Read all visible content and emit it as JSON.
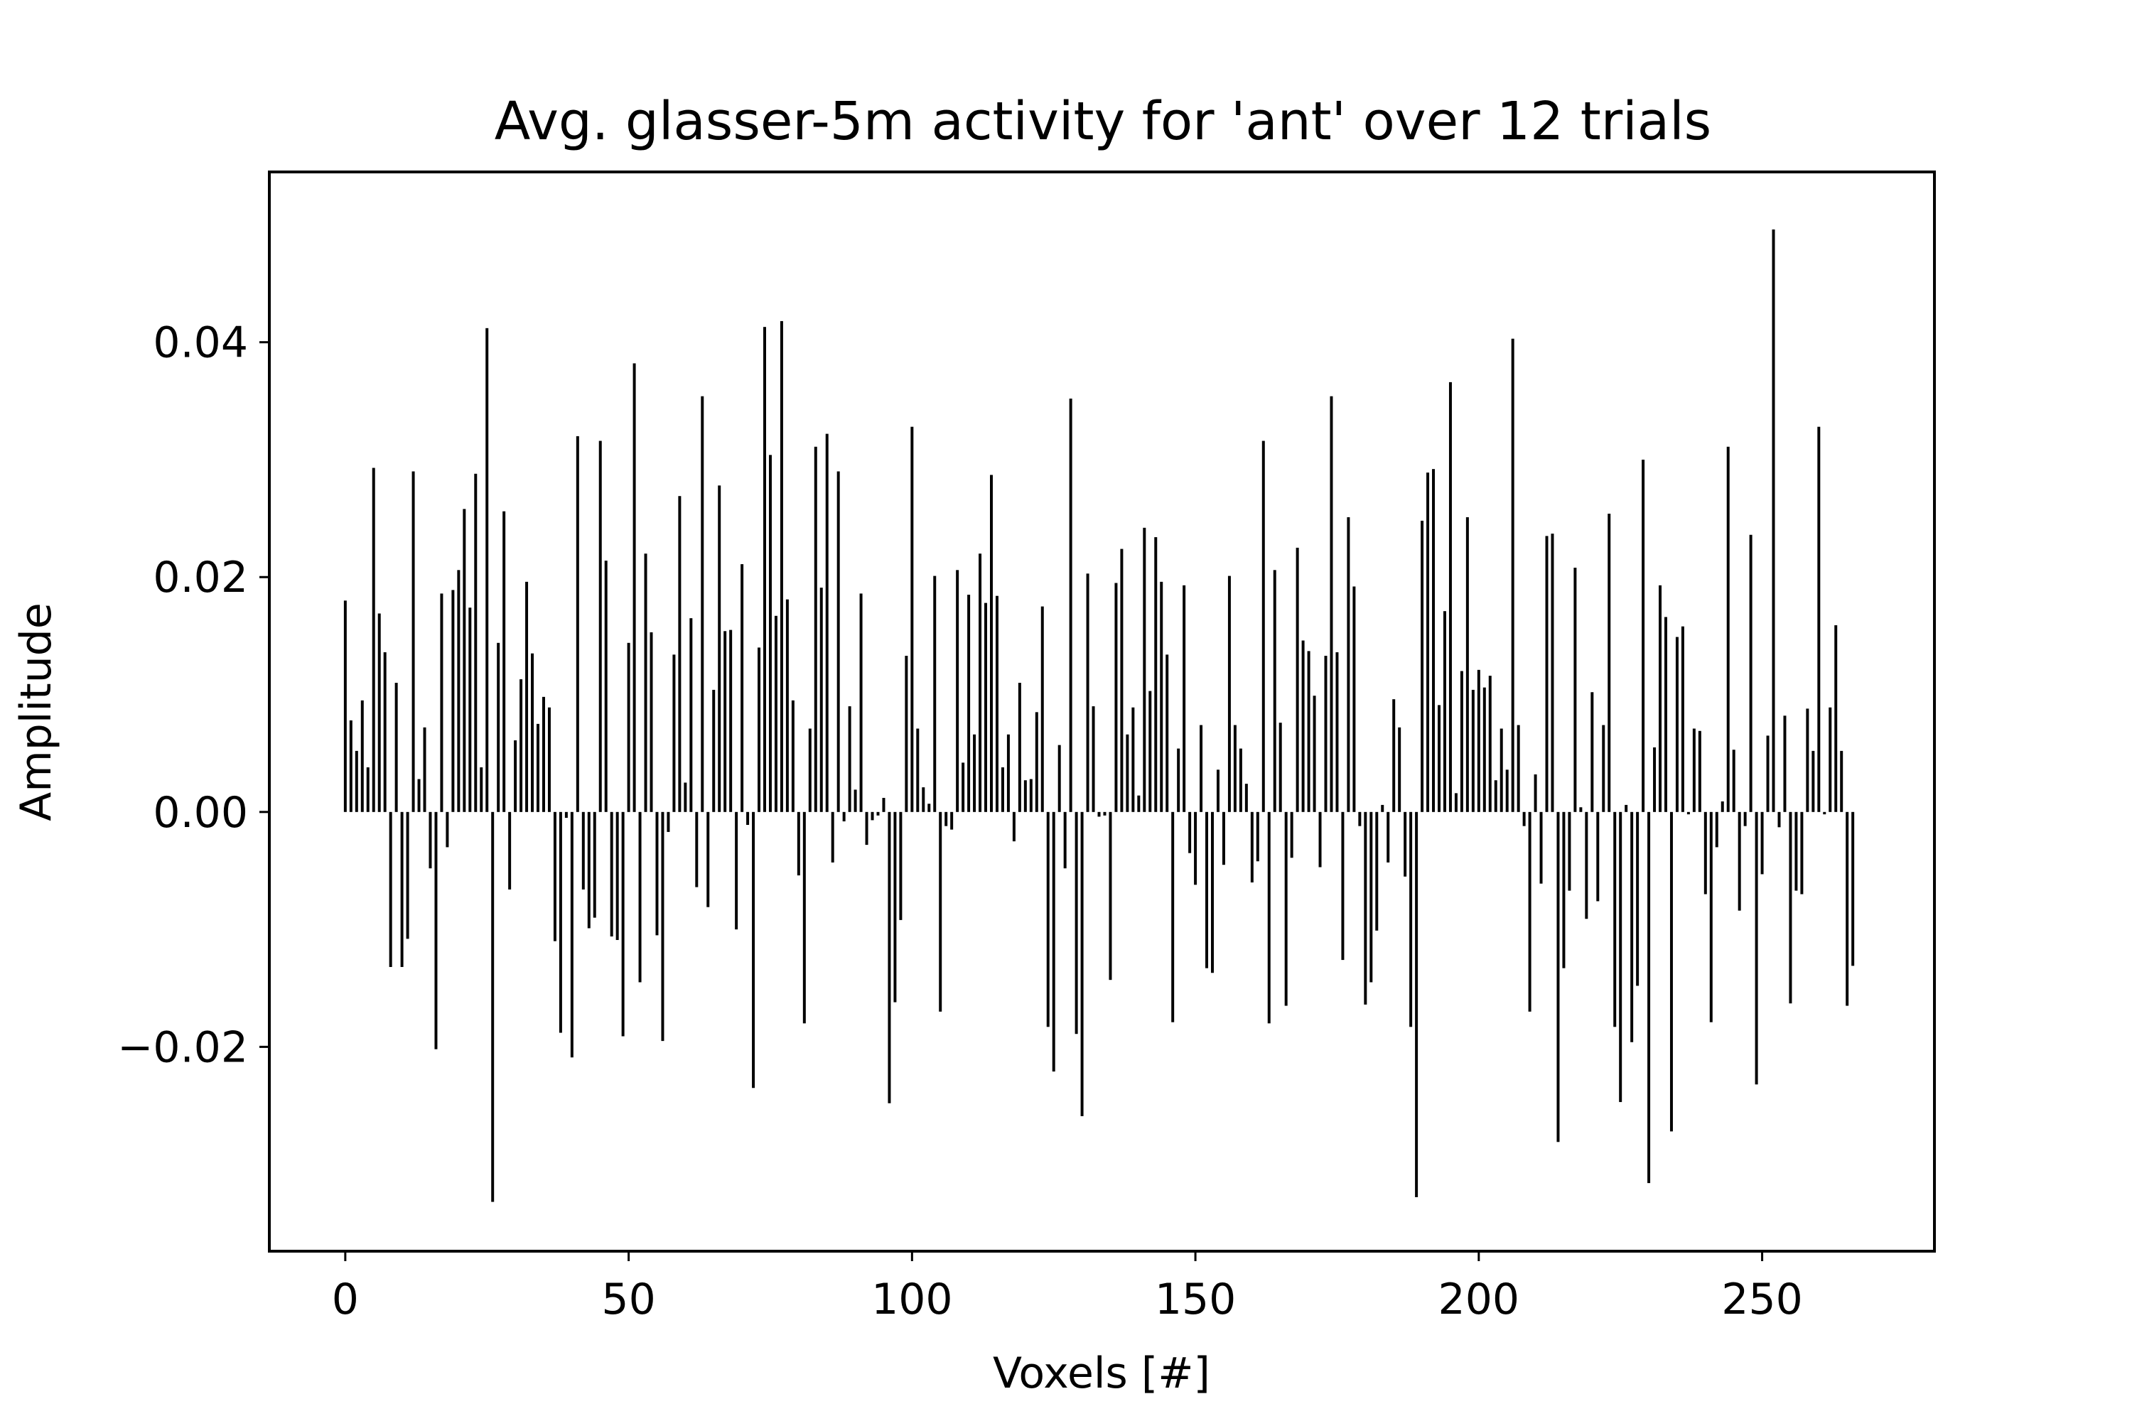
{
  "chart_data": {
    "type": "bar",
    "title": "Avg. glasser-5m activity for 'ant' over 12 trials",
    "xlabel": "Voxels [#]",
    "ylabel": "Amplitude",
    "xlim": [
      -13.4,
      280.4
    ],
    "ylim": [
      -0.0374,
      0.0545
    ],
    "xticks": [
      0,
      50,
      100,
      150,
      200,
      250
    ],
    "yticks": [
      -0.02,
      0.0,
      0.02,
      0.04
    ],
    "ytick_labels": [
      "−0.02",
      "0.00",
      "0.02",
      "0.04"
    ],
    "xtick_labels": [
      "0",
      "50",
      "100",
      "150",
      "200",
      "250"
    ],
    "bar_color": "#000000",
    "grid": false,
    "legend": "none",
    "values": [
      0.018,
      0.0078,
      0.0052,
      0.0095,
      0.0038,
      0.0293,
      0.0169,
      0.0136,
      -0.0132,
      0.011,
      -0.0132,
      -0.0108,
      0.029,
      0.0028,
      0.0072,
      -0.0048,
      -0.0202,
      0.0186,
      -0.003,
      0.0189,
      0.0206,
      0.0258,
      0.0174,
      0.0288,
      0.0038,
      0.0412,
      -0.0332,
      0.0144,
      0.0256,
      -0.0066,
      0.0061,
      0.0113,
      0.0196,
      0.0135,
      0.0075,
      0.0098,
      0.0089,
      -0.011,
      -0.0188,
      -0.0005,
      -0.0209,
      0.032,
      -0.0066,
      -0.0099,
      -0.009,
      0.0316,
      0.0214,
      -0.0106,
      -0.0109,
      -0.0191,
      0.0144,
      0.0382,
      -0.0145,
      0.022,
      0.0153,
      -0.0105,
      -0.0195,
      -0.0017,
      0.0134,
      0.0269,
      0.0025,
      0.0165,
      -0.0064,
      0.0354,
      -0.0081,
      0.0104,
      0.0278,
      0.0154,
      0.0155,
      -0.01,
      0.0211,
      -0.0011,
      -0.0235,
      0.014,
      0.0413,
      0.0304,
      0.0167,
      0.0418,
      0.0181,
      0.0095,
      -0.0054,
      -0.018,
      0.0071,
      0.0311,
      0.0191,
      0.0322,
      -0.0043,
      0.029,
      -0.0008,
      0.009,
      0.0019,
      0.0186,
      -0.0028,
      -0.0007,
      -0.0003,
      0.0012,
      -0.0248,
      -0.0162,
      -0.0092,
      0.0133,
      0.0328,
      0.0071,
      0.0021,
      0.0007,
      0.0201,
      -0.017,
      -0.0012,
      -0.0015,
      0.0206,
      0.0042,
      0.0185,
      0.0066,
      0.022,
      0.0178,
      0.0287,
      0.0184,
      0.0038,
      0.0066,
      -0.0025,
      0.011,
      0.0027,
      0.0028,
      0.0085,
      0.0175,
      -0.0183,
      -0.0221,
      0.0057,
      -0.0048,
      0.0352,
      -0.0189,
      -0.0259,
      0.0203,
      0.009,
      -0.0004,
      -0.0003,
      -0.0143,
      0.0195,
      0.0224,
      0.0066,
      0.0089,
      0.0014,
      0.0242,
      0.0103,
      0.0234,
      0.0196,
      0.0134,
      -0.0179,
      0.0054,
      0.0193,
      -0.0035,
      -0.0062,
      0.0074,
      -0.0133,
      -0.0137,
      0.0036,
      -0.0045,
      0.0201,
      0.0074,
      0.0054,
      0.0024,
      -0.006,
      -0.0042,
      0.0316,
      -0.018,
      0.0206,
      0.0076,
      -0.0165,
      -0.0039,
      0.0225,
      0.0146,
      0.0137,
      0.0099,
      -0.0047,
      0.0133,
      0.0354,
      0.0136,
      -0.0126,
      0.0251,
      0.0192,
      -0.0012,
      -0.0164,
      -0.0145,
      -0.0101,
      0.0006,
      -0.0043,
      0.0096,
      0.0072,
      -0.0055,
      -0.0183,
      -0.0328,
      0.0248,
      0.0289,
      0.0292,
      0.0091,
      0.0171,
      0.0366,
      0.0016,
      0.012,
      0.0251,
      0.0104,
      0.0121,
      0.0106,
      0.0116,
      0.0027,
      0.0071,
      0.0036,
      0.0403,
      0.0074,
      -0.0012,
      -0.017,
      0.0032,
      -0.0061,
      0.0235,
      0.0237,
      -0.0281,
      -0.0133,
      -0.0067,
      0.0208,
      0.0004,
      -0.0091,
      0.0102,
      -0.0076,
      0.0074,
      0.0254,
      -0.0183,
      -0.0247,
      0.0006,
      -0.0196,
      -0.0148,
      0.03,
      -0.0316,
      0.0055,
      0.0193,
      0.0166,
      -0.0272,
      0.0149,
      0.0158,
      -0.0002,
      0.0071,
      0.0069,
      -0.007,
      -0.0179,
      -0.003,
      0.0009,
      0.0311,
      0.0053,
      -0.0084,
      -0.0012,
      0.0236,
      -0.0232,
      -0.0053,
      0.0065,
      0.0496,
      -0.0013,
      0.0082,
      -0.0163,
      -0.0067,
      -0.007,
      0.0088,
      0.0052,
      0.0328,
      -0.0002,
      0.0089,
      0.0159,
      0.0052,
      -0.0165,
      -0.0131
    ]
  }
}
